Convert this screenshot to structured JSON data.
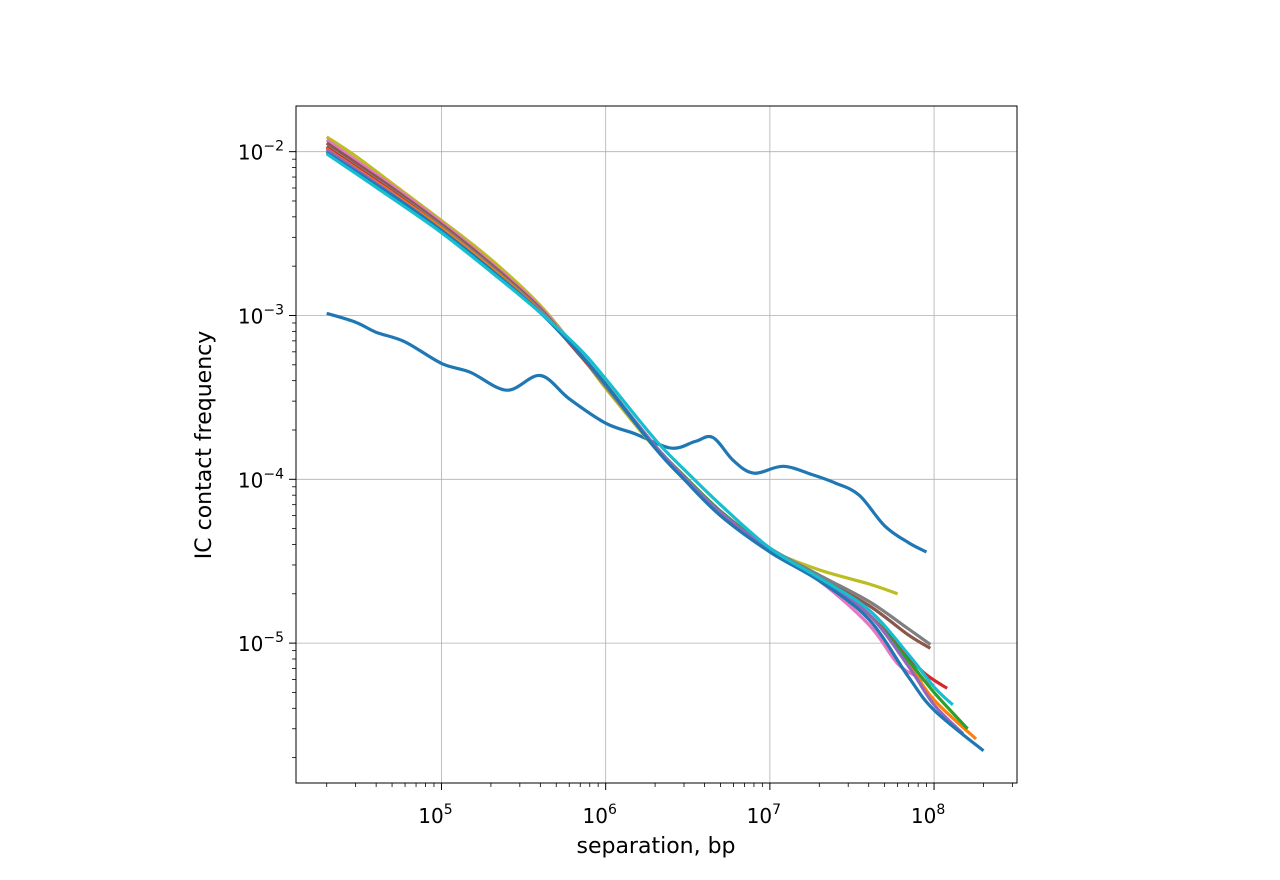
{
  "chart_data": {
    "type": "line",
    "title": "",
    "xlabel": "separation, bp",
    "ylabel": "IC contact frequency",
    "xscale": "log",
    "yscale": "log",
    "xlim": [
      13000,
      320000000
    ],
    "ylim": [
      1.4e-06,
      0.019
    ],
    "grid": true,
    "x_ticks": [
      {
        "value": 100000,
        "base": "10",
        "exp": "5"
      },
      {
        "value": 1000000,
        "base": "10",
        "exp": "6"
      },
      {
        "value": 10000000,
        "base": "10",
        "exp": "7"
      },
      {
        "value": 100000000,
        "base": "10",
        "exp": "8"
      }
    ],
    "y_ticks": [
      {
        "value": 0.01,
        "base": "10",
        "exp": "−2"
      },
      {
        "value": 0.001,
        "base": "10",
        "exp": "−3"
      },
      {
        "value": 0.0001,
        "base": "10",
        "exp": "−4"
      },
      {
        "value": 1e-05,
        "base": "10",
        "exp": "−5"
      }
    ],
    "series": [
      {
        "color": "#1f77b4",
        "x": [
          20000,
          30000,
          40000,
          60000,
          100000,
          150000,
          250000,
          400000,
          600000,
          1000000,
          1500000,
          2500000,
          3500000,
          4500000,
          6000000,
          8000000,
          12000000,
          18000000,
          25000000,
          35000000,
          50000000,
          70000000,
          90000000
        ],
        "y": [
          0.00103,
          0.00091,
          0.00079,
          0.00069,
          0.00051,
          0.00045,
          0.00035,
          0.00043,
          0.00031,
          0.00022,
          0.00019,
          0.000155,
          0.00017,
          0.00018,
          0.00013,
          0.000109,
          0.00012,
          0.000107,
          9.5e-05,
          8e-05,
          5.2e-05,
          4.1e-05,
          3.6e-05
        ]
      },
      {
        "color": "#bcbd22",
        "x": [
          20000,
          30000,
          50000,
          100000,
          200000,
          400000,
          700000,
          1000000,
          2000000,
          3000000,
          5000000,
          8000000,
          10000000,
          20000000,
          40000000,
          60000000
        ],
        "y": [
          0.0123,
          0.0094,
          0.0064,
          0.0038,
          0.0022,
          0.00115,
          0.00058,
          0.00036,
          0.000155,
          0.000102,
          6.3e-05,
          4.5e-05,
          3.7e-05,
          2.8e-05,
          2.3e-05,
          2e-05
        ]
      },
      {
        "color": "#e377c2",
        "x": [
          20000,
          50000,
          100000,
          200000,
          400000,
          700000,
          1000000,
          2000000,
          3000000,
          5000000,
          10000000,
          20000000,
          40000000,
          60000000,
          80000000,
          100000000
        ],
        "y": [
          0.0118,
          0.0062,
          0.0037,
          0.0021,
          0.00112,
          0.00058,
          0.00037,
          0.000158,
          0.000102,
          6.2e-05,
          3.7e-05,
          2.4e-05,
          1.3e-05,
          7.5e-06,
          6.2e-06,
          5.5e-06
        ]
      },
      {
        "color": "#8c564b",
        "x": [
          20000,
          50000,
          100000,
          200000,
          400000,
          700000,
          1000000,
          2000000,
          3000000,
          5000000,
          10000000,
          20000000,
          40000000,
          70000000,
          95000000
        ],
        "y": [
          0.0113,
          0.006,
          0.0036,
          0.00205,
          0.0011,
          0.00057,
          0.00037,
          0.000158,
          0.000103,
          6.3e-05,
          3.7e-05,
          2.5e-05,
          1.7e-05,
          1.12e-05,
          9.3e-06
        ]
      },
      {
        "color": "#7f7f7f",
        "x": [
          20000,
          50000,
          100000,
          200000,
          400000,
          700000,
          1000000,
          2000000,
          3000000,
          5000000,
          10000000,
          20000000,
          40000000,
          70000000,
          95000000
        ],
        "y": [
          0.0108,
          0.0058,
          0.0035,
          0.002,
          0.00108,
          0.00057,
          0.00037,
          0.000158,
          0.000104,
          6.4e-05,
          3.8e-05,
          2.6e-05,
          1.8e-05,
          1.22e-05,
          9.8e-06
        ]
      },
      {
        "color": "#d62728",
        "x": [
          20000,
          50000,
          100000,
          200000,
          400000,
          700000,
          1000000,
          2000000,
          3000000,
          5000000,
          10000000,
          20000000,
          40000000,
          70000000,
          90000000,
          120000000
        ],
        "y": [
          0.0106,
          0.0057,
          0.0034,
          0.00195,
          0.00106,
          0.00057,
          0.00038,
          0.000158,
          0.000103,
          6.3e-05,
          3.7e-05,
          2.5e-05,
          1.5e-05,
          8.2e-06,
          6.4e-06,
          5.3e-06
        ]
      },
      {
        "color": "#ff7f0e",
        "x": [
          20000,
          50000,
          100000,
          200000,
          400000,
          700000,
          1000000,
          2000000,
          3000000,
          5000000,
          10000000,
          20000000,
          40000000,
          70000000,
          100000000,
          180000000
        ],
        "y": [
          0.0104,
          0.0056,
          0.0034,
          0.00195,
          0.00106,
          0.00058,
          0.00038,
          0.00016,
          0.000104,
          6.3e-05,
          3.7e-05,
          2.5e-05,
          1.5e-05,
          7.4e-06,
          4.5e-06,
          2.6e-06
        ]
      },
      {
        "color": "#2ca02c",
        "x": [
          20000,
          50000,
          100000,
          200000,
          400000,
          700000,
          1000000,
          2000000,
          3000000,
          5000000,
          10000000,
          20000000,
          40000000,
          70000000,
          100000000,
          160000000
        ],
        "y": [
          0.0101,
          0.0055,
          0.0033,
          0.0019,
          0.00105,
          0.00058,
          0.00038,
          0.00016,
          0.000105,
          6.4e-05,
          3.7e-05,
          2.5e-05,
          1.5e-05,
          7.8e-06,
          5e-06,
          3e-06
        ]
      },
      {
        "color": "#9467bd",
        "x": [
          20000,
          50000,
          100000,
          200000,
          400000,
          700000,
          1000000,
          2000000,
          3000000,
          5000000,
          10000000,
          20000000,
          40000000,
          70000000,
          100000000,
          150000000
        ],
        "y": [
          0.0103,
          0.0055,
          0.0033,
          0.0019,
          0.00105,
          0.00058,
          0.00038,
          0.00016,
          0.000104,
          6.3e-05,
          3.7e-05,
          2.5e-05,
          1.5e-05,
          7.2e-06,
          4.2e-06,
          2.8e-06
        ]
      },
      {
        "color": "#1f77b4",
        "x": [
          20000,
          50000,
          100000,
          200000,
          400000,
          700000,
          1000000,
          2000000,
          3000000,
          5000000,
          10000000,
          20000000,
          40000000,
          70000000,
          100000000,
          200000000
        ],
        "y": [
          0.0099,
          0.0054,
          0.0033,
          0.0019,
          0.00104,
          0.00058,
          0.00038,
          0.000155,
          0.0001,
          6e-05,
          3.6e-05,
          2.4e-05,
          1.4e-05,
          6.2e-06,
          3.9e-06,
          2.2e-06
        ]
      },
      {
        "color": "#17becf",
        "x": [
          20000,
          50000,
          100000,
          200000,
          400000,
          700000,
          1000000,
          2000000,
          3000000,
          5000000,
          10000000,
          20000000,
          40000000,
          70000000,
          100000000,
          130000000
        ],
        "y": [
          0.0097,
          0.0052,
          0.0032,
          0.00185,
          0.00104,
          0.00062,
          0.00041,
          0.000175,
          0.000115,
          7e-05,
          3.8e-05,
          2.5e-05,
          1.6e-05,
          8.5e-06,
          5.4e-06,
          4.2e-06
        ]
      }
    ]
  }
}
